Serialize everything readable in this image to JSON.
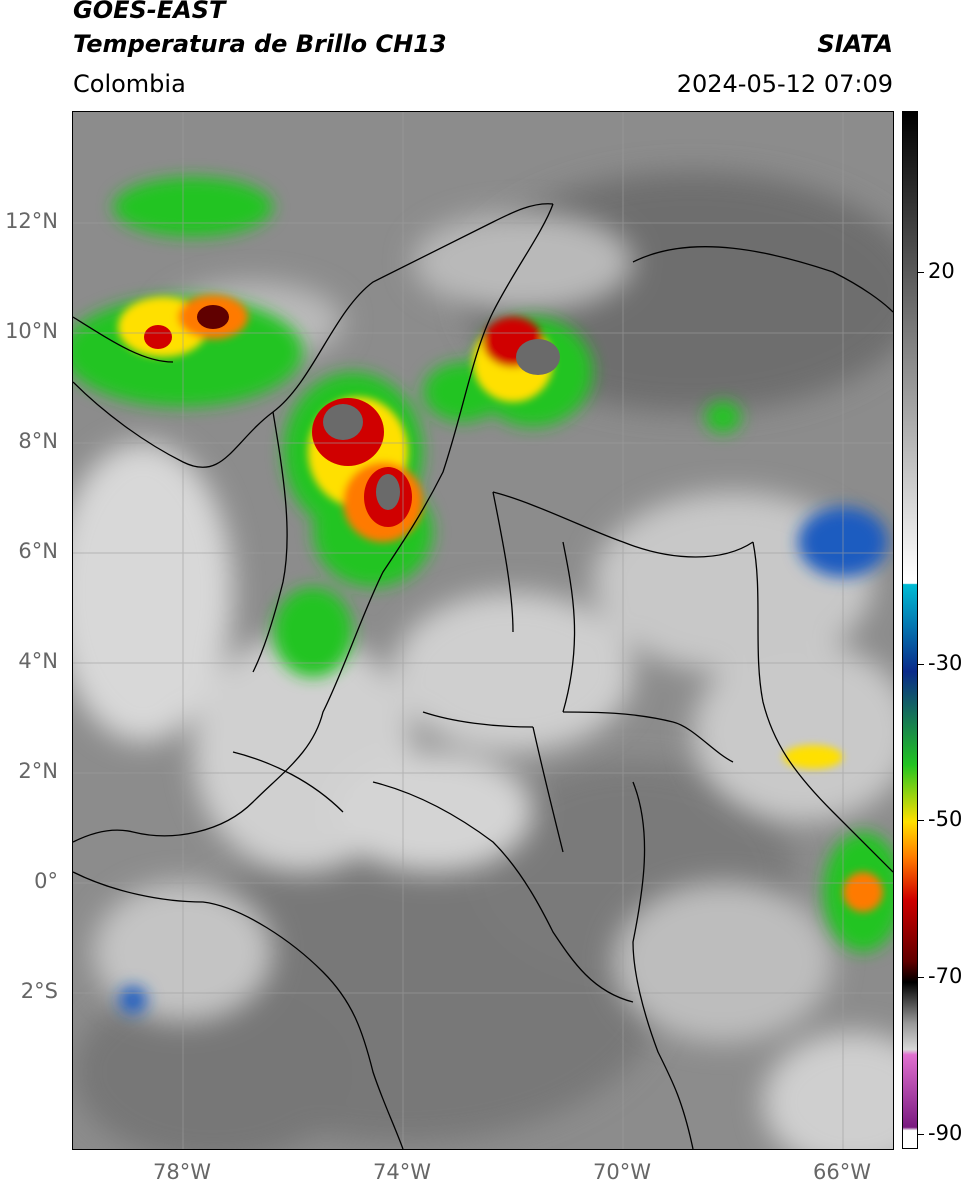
{
  "header": {
    "title_line1": "GOES-EAST",
    "title_line2": "Temperatura de Brillo CH13",
    "region": "Colombia",
    "brand": "SIATA",
    "datetime": "2024-05-12 07:09"
  },
  "axes": {
    "lat_labels": [
      "12°N",
      "10°N",
      "8°N",
      "6°N",
      "4°N",
      "2°N",
      "0°",
      "2°S"
    ],
    "lon_labels": [
      "78°W",
      "74°W",
      "70°W",
      "66°W"
    ]
  },
  "colorbar": {
    "labels": [
      "20",
      "-30",
      "-50",
      "-70",
      "-90"
    ],
    "colors": {
      "warm_top": "#000000",
      "warm_mid": "#7f7f7f",
      "warm_low": "#ffffff",
      "cyan": "#00bcd4",
      "blue": "#0a2a8a",
      "green": "#22c422",
      "yellow": "#ffe000",
      "orange": "#ff7a00",
      "red": "#d00000",
      "darkred": "#600000",
      "gray_band": "#9a9a9a",
      "pink": "#e070d0",
      "purple": "#7a1a80"
    }
  }
}
